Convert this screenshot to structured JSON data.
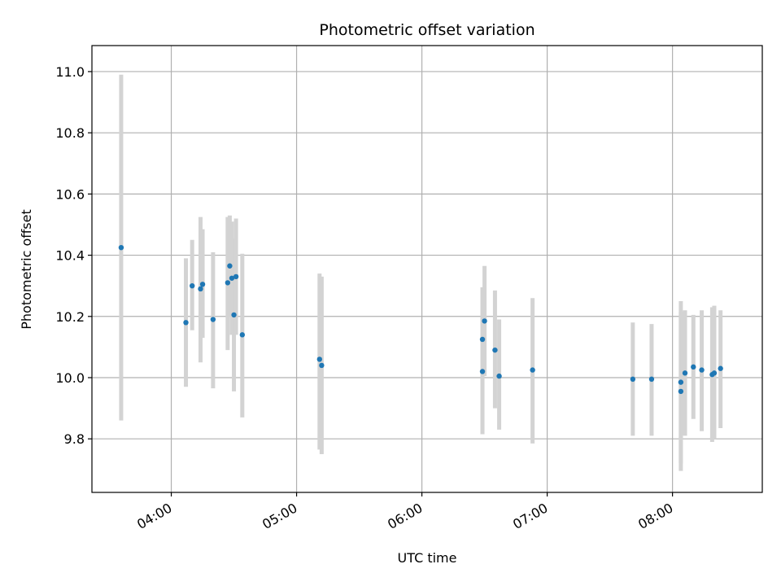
{
  "chart_data": {
    "type": "scatter",
    "title": "Photometric offset variation",
    "xlabel": "UTC time",
    "ylabel": "Photometric offset",
    "x_ticks": [
      "04:00",
      "05:00",
      "06:00",
      "07:00",
      "08:00"
    ],
    "y_ticks": [
      "9.8",
      "10.0",
      "10.2",
      "10.4",
      "10.6",
      "10.8",
      "11.0"
    ],
    "xlim": [
      "03:22",
      "08:43"
    ],
    "ylim": [
      9.625,
      11.085
    ],
    "grid": true,
    "colors": {
      "point": "#1f77b4",
      "errorbar": "#d3d3d3",
      "grid": "#b0b0b0"
    },
    "points": [
      {
        "t": "03:36",
        "y": 10.425,
        "lo": 9.86,
        "hi": 10.99
      },
      {
        "t": "04:07",
        "y": 10.18,
        "lo": 9.97,
        "hi": 10.39
      },
      {
        "t": "04:10",
        "y": 10.3,
        "lo": 10.155,
        "hi": 10.45
      },
      {
        "t": "04:14",
        "y": 10.29,
        "lo": 10.05,
        "hi": 10.525
      },
      {
        "t": "04:15",
        "y": 10.305,
        "lo": 10.13,
        "hi": 10.485
      },
      {
        "t": "04:20",
        "y": 10.19,
        "lo": 9.965,
        "hi": 10.41
      },
      {
        "t": "04:27",
        "y": 10.31,
        "lo": 10.09,
        "hi": 10.525
      },
      {
        "t": "04:28",
        "y": 10.365,
        "lo": 10.2,
        "hi": 10.53
      },
      {
        "t": "04:29",
        "y": 10.325,
        "lo": 10.14,
        "hi": 10.51
      },
      {
        "t": "04:30",
        "y": 10.205,
        "lo": 9.955,
        "hi": 10.455
      },
      {
        "t": "04:31",
        "y": 10.33,
        "lo": 10.14,
        "hi": 10.52
      },
      {
        "t": "04:34",
        "y": 10.14,
        "lo": 9.87,
        "hi": 10.405
      },
      {
        "t": "05:11",
        "y": 10.06,
        "lo": 9.765,
        "hi": 10.34
      },
      {
        "t": "05:12",
        "y": 10.04,
        "lo": 9.75,
        "hi": 10.33
      },
      {
        "t": "06:29",
        "y": 10.02,
        "lo": 9.815,
        "hi": 10.225
      },
      {
        "t": "06:29",
        "y": 10.125,
        "lo": 9.96,
        "hi": 10.295
      },
      {
        "t": "06:30",
        "y": 10.185,
        "lo": 10.005,
        "hi": 10.365
      },
      {
        "t": "06:35",
        "y": 10.09,
        "lo": 9.9,
        "hi": 10.285
      },
      {
        "t": "06:37",
        "y": 10.005,
        "lo": 9.83,
        "hi": 10.19
      },
      {
        "t": "06:53",
        "y": 10.025,
        "lo": 9.785,
        "hi": 10.26
      },
      {
        "t": "07:41",
        "y": 9.995,
        "lo": 9.81,
        "hi": 10.18
      },
      {
        "t": "07:50",
        "y": 9.995,
        "lo": 9.81,
        "hi": 10.175
      },
      {
        "t": "08:04",
        "y": 9.955,
        "lo": 9.695,
        "hi": 10.215
      },
      {
        "t": "08:04",
        "y": 9.985,
        "lo": 9.72,
        "hi": 10.25
      },
      {
        "t": "08:06",
        "y": 10.015,
        "lo": 9.81,
        "hi": 10.22
      },
      {
        "t": "08:10",
        "y": 10.035,
        "lo": 9.865,
        "hi": 10.205
      },
      {
        "t": "08:14",
        "y": 10.025,
        "lo": 9.825,
        "hi": 10.22
      },
      {
        "t": "08:19",
        "y": 10.01,
        "lo": 9.79,
        "hi": 10.23
      },
      {
        "t": "08:20",
        "y": 10.015,
        "lo": 9.8,
        "hi": 10.235
      },
      {
        "t": "08:23",
        "y": 10.03,
        "lo": 9.835,
        "hi": 10.22
      }
    ]
  }
}
